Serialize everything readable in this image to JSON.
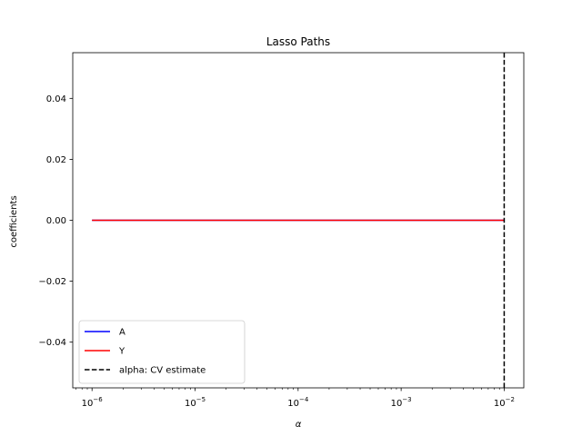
{
  "chart_data": {
    "type": "line",
    "title": "Lasso Paths",
    "xlabel": "α",
    "ylabel": "coefficients",
    "xscale": "log",
    "xlim": [
      6.5e-07,
      0.0155
    ],
    "ylim": [
      -0.055,
      0.055
    ],
    "x_ticks": [
      1e-06,
      1e-05,
      0.0001,
      0.001,
      0.01
    ],
    "x_tick_labels": [
      {
        "base": "10",
        "exp": "−6"
      },
      {
        "base": "10",
        "exp": "−5"
      },
      {
        "base": "10",
        "exp": "−4"
      },
      {
        "base": "10",
        "exp": "−3"
      },
      {
        "base": "10",
        "exp": "−2"
      }
    ],
    "y_ticks": [
      -0.04,
      -0.02,
      0.0,
      0.02,
      0.04
    ],
    "y_tick_labels": [
      "−0.04",
      "−0.02",
      "0.00",
      "0.02",
      "0.04"
    ],
    "grid": false,
    "legend_position": "lower-left",
    "series": [
      {
        "name": "A",
        "color": "#0000ff",
        "style": "solid",
        "x": [
          1e-06,
          0.01
        ],
        "y": [
          0.0,
          0.0
        ]
      },
      {
        "name": "Y",
        "color": "#ff0000",
        "style": "solid",
        "x": [
          1e-06,
          0.01
        ],
        "y": [
          0.0,
          0.0
        ]
      }
    ],
    "vlines": [
      {
        "name": "alpha: CV estimate",
        "x": 0.01,
        "color": "#000000",
        "style": "dashed"
      }
    ]
  }
}
